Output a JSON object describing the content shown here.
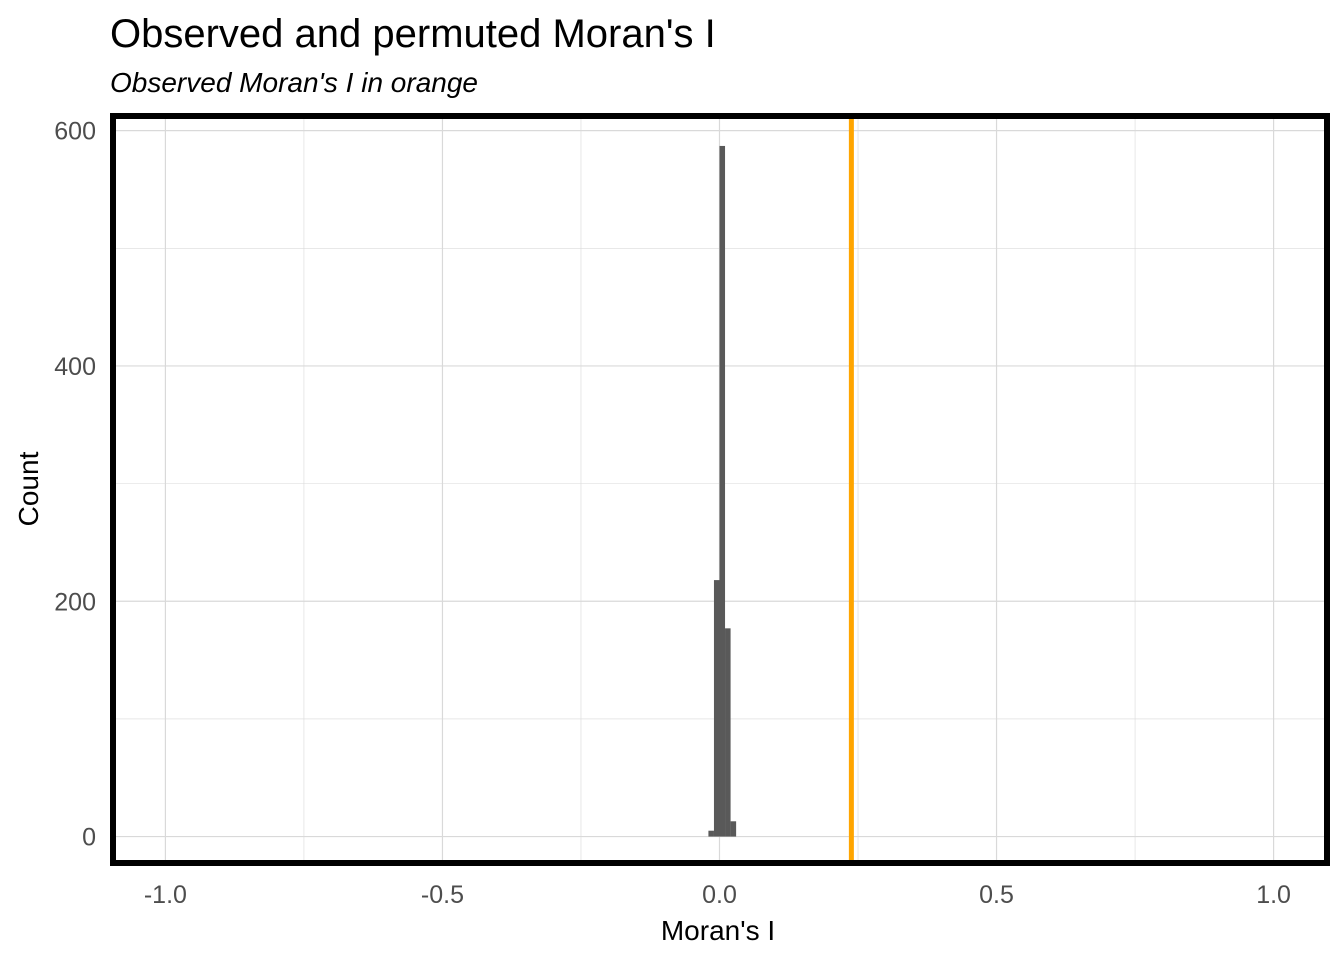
{
  "chart_data": {
    "type": "bar",
    "title": "Observed and permuted Moran's I",
    "subtitle": "Observed Moran's I in orange",
    "xlabel": "Moran's I",
    "ylabel": "Count",
    "xlim": [
      -1.1,
      1.1
    ],
    "ylim": [
      -25,
      615
    ],
    "x_ticks": [
      -1.0,
      -0.5,
      0.0,
      0.5,
      1.0
    ],
    "x_tick_labels": [
      "-1.0",
      "-0.5",
      "0.0",
      "0.5",
      "1.0"
    ],
    "y_ticks": [
      0,
      200,
      400,
      600
    ],
    "y_tick_labels": [
      "0",
      "200",
      "400",
      "600"
    ],
    "grid": true,
    "bin_width": 0.01,
    "bins": [
      {
        "start": -0.02,
        "end": -0.01,
        "count": 5
      },
      {
        "start": -0.01,
        "end": 0.0,
        "count": 218
      },
      {
        "start": 0.0,
        "end": 0.01,
        "count": 587
      },
      {
        "start": 0.01,
        "end": 0.02,
        "count": 177
      },
      {
        "start": 0.02,
        "end": 0.03,
        "count": 13
      }
    ],
    "observed_value": 0.238,
    "colors": {
      "bars": "#595959",
      "observed_line": "#FFA500",
      "grid": "#d9d9d9",
      "frame": "#000000"
    }
  }
}
